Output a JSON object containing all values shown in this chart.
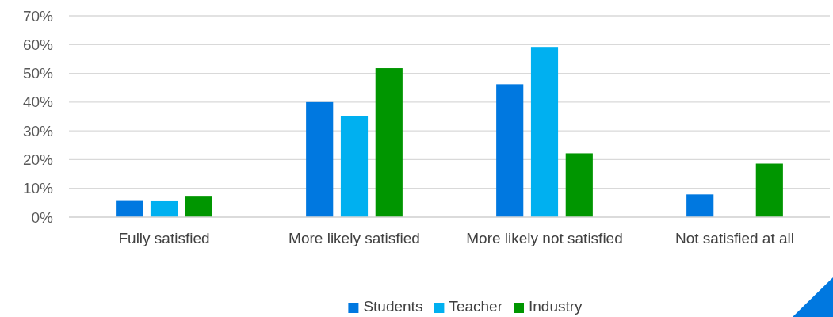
{
  "chart_data": {
    "type": "bar",
    "categories": [
      "Fully satisfied",
      "More likely satisfied",
      "More likely not satisfied",
      "Not satisfied at all"
    ],
    "series": [
      {
        "name": "Students",
        "color": "#0078e0",
        "values": [
          5.9,
          40,
          46.2,
          7.9
        ]
      },
      {
        "name": "Teacher",
        "color": "#00b0f0",
        "values": [
          5.8,
          35.2,
          59.2,
          0
        ]
      },
      {
        "name": "Industry",
        "color": "#009600",
        "values": [
          7.4,
          51.8,
          22.2,
          18.6
        ]
      }
    ],
    "ylim": [
      0,
      70
    ],
    "yticks": [
      {
        "value": 0,
        "label": "0%"
      },
      {
        "value": 10,
        "label": "10%"
      },
      {
        "value": 20,
        "label": "20%"
      },
      {
        "value": 30,
        "label": "30%"
      },
      {
        "value": 40,
        "label": "40%"
      },
      {
        "value": 50,
        "label": "50%"
      },
      {
        "value": 60,
        "label": "60%"
      },
      {
        "value": 70,
        "label": "70%"
      }
    ],
    "grid": "y",
    "legend": "bottom"
  }
}
